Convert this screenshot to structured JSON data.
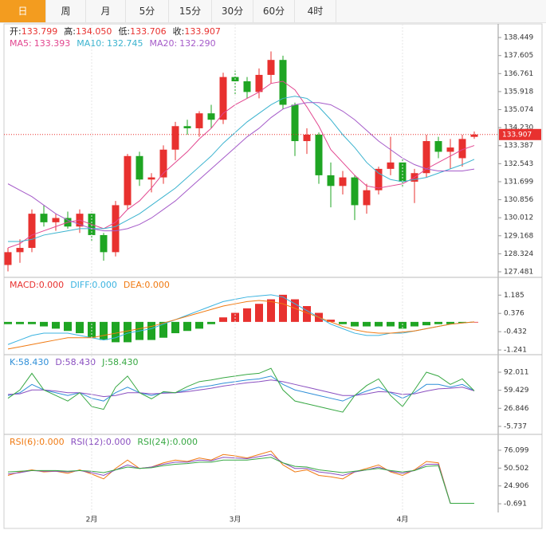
{
  "tabs": [
    "日",
    "周",
    "月",
    "5分",
    "15分",
    "30分",
    "60分",
    "4时"
  ],
  "active_tab_index": 0,
  "chart_data": [
    {
      "type": "candlestick",
      "header": [
        {
          "label": "开:",
          "value": 133.799
        },
        {
          "label": "高:",
          "value": 134.05,
          "value_label": "134.050"
        },
        {
          "label": "低:",
          "value": 133.706
        },
        {
          "label": "收:",
          "value": 133.907
        }
      ],
      "header_value_color": "#e8312f",
      "up_color": "#e8312f",
      "down_color": "#1fa523",
      "last_price": 133.907,
      "ylim": [
        127.22,
        138.9
      ],
      "yticks": [
        138.449,
        137.605,
        136.761,
        135.918,
        135.074,
        134.23,
        133.387,
        132.543,
        131.699,
        130.856,
        130.012,
        129.168,
        128.324,
        127.481
      ],
      "ytick_labels": [
        "138.449",
        "137.605",
        "136.761",
        "135.918",
        "135.074",
        "134.230",
        "133.387",
        "132.543",
        "131.699",
        "130.856",
        "130.012",
        "129.168",
        "128.324",
        "127.481"
      ],
      "candles": {
        "open": [
          127.8,
          128.4,
          128.6,
          130.2,
          129.8,
          130.0,
          129.6,
          130.2,
          129.2,
          128.4,
          130.6,
          132.9,
          131.8,
          131.9,
          133.2,
          134.3,
          134.2,
          134.9,
          134.6,
          136.6,
          136.4,
          135.9,
          136.7,
          137.4,
          135.3,
          133.6,
          133.9,
          132.0,
          131.5,
          131.9,
          130.6,
          131.3,
          132.3,
          132.6,
          131.7,
          132.1,
          133.6,
          133.1,
          132.8,
          133.799
        ],
        "high": [
          128.6,
          129.0,
          130.4,
          130.6,
          130.2,
          130.3,
          130.4,
          130.3,
          129.3,
          130.8,
          133.0,
          133.1,
          132.1,
          133.4,
          134.5,
          134.6,
          135.0,
          135.3,
          136.8,
          136.9,
          136.6,
          137.0,
          137.8,
          137.6,
          135.4,
          134.2,
          134.0,
          132.6,
          132.2,
          132.0,
          131.6,
          132.4,
          133.8,
          132.8,
          132.3,
          133.9,
          133.8,
          133.7,
          133.9,
          134.05
        ],
        "low": [
          127.5,
          127.9,
          128.4,
          129.6,
          129.4,
          129.5,
          129.3,
          128.9,
          128.0,
          128.2,
          130.4,
          131.5,
          131.2,
          131.6,
          132.7,
          133.9,
          133.8,
          134.2,
          134.4,
          135.8,
          135.6,
          135.6,
          136.3,
          135.1,
          132.9,
          133.0,
          131.6,
          130.5,
          131.1,
          129.9,
          130.2,
          131.1,
          132.0,
          131.4,
          130.7,
          131.9,
          132.8,
          132.3,
          132.4,
          133.706
        ],
        "close": [
          128.4,
          128.6,
          130.2,
          129.8,
          130.0,
          129.6,
          130.2,
          129.2,
          128.4,
          130.6,
          132.9,
          131.8,
          131.9,
          133.2,
          134.3,
          134.2,
          134.9,
          134.6,
          136.6,
          136.4,
          135.9,
          136.7,
          137.4,
          135.3,
          133.6,
          133.9,
          132.0,
          131.5,
          131.9,
          130.6,
          131.3,
          132.3,
          132.6,
          131.7,
          132.1,
          133.6,
          133.1,
          133.3,
          133.7,
          133.907
        ]
      },
      "series": [
        {
          "label": "MA5:",
          "value": 133.393,
          "color": "#e2468f",
          "values": [
            128.6,
            128.8,
            129.2,
            129.4,
            129.6,
            129.8,
            129.9,
            129.7,
            129.5,
            129.8,
            130.4,
            130.8,
            131.4,
            132.1,
            132.6,
            133.1,
            133.7,
            134.2,
            134.9,
            135.3,
            135.6,
            135.9,
            136.3,
            136.4,
            136.0,
            135.2,
            134.3,
            133.2,
            132.6,
            132.0,
            131.5,
            131.4,
            131.5,
            131.6,
            131.9,
            132.3,
            132.6,
            132.9,
            133.2,
            133.393
          ]
        },
        {
          "label": "MA10:",
          "value": 132.745,
          "color": "#3bb3cf",
          "values": [
            128.9,
            128.9,
            129.0,
            129.2,
            129.3,
            129.4,
            129.5,
            129.5,
            129.5,
            129.6,
            129.9,
            130.2,
            130.6,
            131.0,
            131.4,
            131.9,
            132.4,
            132.9,
            133.5,
            134.0,
            134.5,
            134.9,
            135.3,
            135.6,
            135.7,
            135.6,
            135.2,
            134.6,
            133.9,
            133.3,
            132.6,
            132.1,
            131.8,
            131.7,
            131.8,
            131.9,
            132.1,
            132.3,
            132.5,
            132.745
          ]
        },
        {
          "label": "MA20:",
          "value": 132.29,
          "value_label": "132.290",
          "color": "#a55bc9",
          "values": [
            131.6,
            131.3,
            131.0,
            130.6,
            130.2,
            129.9,
            129.7,
            129.5,
            129.4,
            129.4,
            129.5,
            129.7,
            130.0,
            130.4,
            130.8,
            131.3,
            131.8,
            132.3,
            132.8,
            133.3,
            133.8,
            134.2,
            134.7,
            135.1,
            135.3,
            135.4,
            135.4,
            135.3,
            135.0,
            134.6,
            134.1,
            133.6,
            133.2,
            132.8,
            132.5,
            132.3,
            132.2,
            132.2,
            132.2,
            132.29
          ]
        }
      ]
    },
    {
      "type": "macd",
      "header": [
        {
          "label": "MACD:",
          "value": 0,
          "value_label": "0.000",
          "color": "#e8312f"
        },
        {
          "label": "DIFF:",
          "value": 0,
          "value_label": "0.000",
          "color": "#3bb3e0"
        },
        {
          "label": "DEA:",
          "value": 0,
          "value_label": "0.000",
          "color": "#f07a12"
        }
      ],
      "ylim": [
        -1.45,
        1.9
      ],
      "yticks": [
        1.185,
        0.376,
        -0.432,
        -1.241
      ],
      "bars": {
        "up_color": "#e8312f",
        "down_color": "#1fa523",
        "values": [
          -0.1,
          -0.1,
          -0.1,
          -0.2,
          -0.3,
          -0.4,
          -0.5,
          -0.7,
          -0.8,
          -0.9,
          -0.9,
          -0.8,
          -0.8,
          -0.7,
          -0.5,
          -0.4,
          -0.3,
          -0.1,
          0.2,
          0.4,
          0.6,
          0.8,
          1.0,
          1.2,
          1.0,
          0.7,
          0.4,
          0.1,
          -0.1,
          -0.2,
          -0.2,
          -0.2,
          -0.2,
          -0.3,
          -0.2,
          -0.15,
          -0.1,
          -0.1,
          -0.05,
          0
        ]
      },
      "series": [
        {
          "color": "#3bb3e0",
          "values": [
            -1.0,
            -0.8,
            -0.6,
            -0.5,
            -0.5,
            -0.5,
            -0.6,
            -0.7,
            -0.8,
            -0.7,
            -0.5,
            -0.4,
            -0.3,
            -0.1,
            0.1,
            0.3,
            0.5,
            0.7,
            0.9,
            1.0,
            1.1,
            1.15,
            1.2,
            1.1,
            0.8,
            0.5,
            0.2,
            -0.1,
            -0.3,
            -0.5,
            -0.6,
            -0.6,
            -0.5,
            -0.5,
            -0.4,
            -0.3,
            -0.2,
            -0.1,
            -0.05,
            0
          ]
        },
        {
          "color": "#f07a12",
          "values": [
            -1.2,
            -1.1,
            -1.0,
            -0.9,
            -0.8,
            -0.7,
            -0.7,
            -0.7,
            -0.6,
            -0.5,
            -0.4,
            -0.3,
            -0.2,
            -0.05,
            0.1,
            0.25,
            0.4,
            0.55,
            0.7,
            0.8,
            0.9,
            0.95,
            0.9,
            0.8,
            0.6,
            0.4,
            0.2,
            0,
            -0.2,
            -0.35,
            -0.45,
            -0.5,
            -0.5,
            -0.45,
            -0.4,
            -0.3,
            -0.2,
            -0.1,
            -0.05,
            0
          ]
        }
      ]
    },
    {
      "type": "kdj",
      "header": [
        {
          "label": "K:",
          "value": 58.43,
          "value_label": "58.430",
          "color": "#2f8fd8"
        },
        {
          "label": "D:",
          "value": 58.43,
          "value_label": "58.430",
          "color": "#8a4fc0"
        },
        {
          "label": "J:",
          "value": 58.43,
          "value_label": "58.430",
          "color": "#37a843"
        }
      ],
      "ylim": [
        -20.2,
        120.8
      ],
      "yticks": [
        92.011,
        59.429,
        26.846,
        -5.737
      ],
      "series": [
        {
          "color": "#2f8fd8",
          "values": [
            50,
            55,
            70,
            60,
            55,
            50,
            55,
            45,
            40,
            55,
            65,
            55,
            50,
            55,
            55,
            60,
            65,
            68,
            72,
            75,
            78,
            80,
            85,
            70,
            60,
            55,
            50,
            45,
            40,
            50,
            58,
            65,
            55,
            45,
            55,
            70,
            70,
            65,
            70,
            58.43
          ]
        },
        {
          "color": "#8a4fc0",
          "values": [
            52,
            53,
            60,
            60,
            58,
            55,
            55,
            52,
            48,
            50,
            55,
            55,
            53,
            54,
            55,
            57,
            60,
            63,
            67,
            70,
            73,
            75,
            78,
            75,
            70,
            65,
            60,
            55,
            50,
            50,
            53,
            57,
            56,
            52,
            53,
            58,
            62,
            63,
            65,
            58.43
          ]
        },
        {
          "color": "#37a843",
          "values": [
            45,
            60,
            90,
            60,
            50,
            40,
            55,
            30,
            25,
            65,
            85,
            55,
            44,
            57,
            55,
            66,
            75,
            78,
            82,
            85,
            88,
            90,
            99,
            60,
            40,
            35,
            30,
            25,
            20,
            50,
            68,
            80,
            50,
            30,
            60,
            92,
            85,
            70,
            80,
            58.43
          ]
        }
      ]
    },
    {
      "type": "rsi",
      "header": [
        {
          "label": "RSI(6):",
          "value": 0,
          "value_label": "0.000",
          "color": "#f07a12"
        },
        {
          "label": "RSI(12):",
          "value": 0,
          "value_label": "0.000",
          "color": "#8a4fc0"
        },
        {
          "label": "RSI(24):",
          "value": 0,
          "value_label": "0.000",
          "color": "#37a843"
        }
      ],
      "ylim": [
        -15.5,
        96.6
      ],
      "yticks": [
        76.099,
        50.502,
        24.906,
        -0.691
      ],
      "categories": [
        null,
        null,
        null,
        null,
        null,
        null,
        null,
        "2月",
        null,
        null,
        null,
        null,
        null,
        null,
        null,
        null,
        null,
        null,
        null,
        "3月",
        null,
        null,
        null,
        null,
        null,
        null,
        null,
        null,
        null,
        null,
        null,
        null,
        null,
        "4月",
        null,
        null,
        null,
        null,
        null,
        null
      ],
      "series": [
        {
          "color": "#f07a12",
          "values": [
            40,
            45,
            48,
            45,
            46,
            43,
            48,
            42,
            35,
            50,
            62,
            50,
            52,
            58,
            62,
            60,
            65,
            62,
            70,
            68,
            65,
            70,
            75,
            55,
            45,
            48,
            40,
            38,
            35,
            45,
            50,
            55,
            45,
            40,
            48,
            60,
            58,
            0,
            0,
            0
          ]
        },
        {
          "color": "#8a4fc0",
          "values": [
            42,
            44,
            47,
            46,
            46,
            45,
            47,
            44,
            40,
            48,
            55,
            50,
            52,
            56,
            59,
            59,
            62,
            61,
            66,
            65,
            64,
            67,
            70,
            58,
            50,
            50,
            45,
            43,
            40,
            45,
            48,
            52,
            46,
            43,
            47,
            56,
            56,
            0,
            0,
            0
          ]
        },
        {
          "color": "#37a843",
          "values": [
            45,
            46,
            47,
            47,
            47,
            46,
            47,
            46,
            44,
            48,
            52,
            50,
            51,
            54,
            56,
            57,
            59,
            59,
            62,
            62,
            62,
            64,
            66,
            58,
            53,
            52,
            48,
            46,
            44,
            46,
            48,
            50,
            47,
            45,
            47,
            53,
            54,
            0,
            0,
            0
          ]
        }
      ]
    }
  ]
}
